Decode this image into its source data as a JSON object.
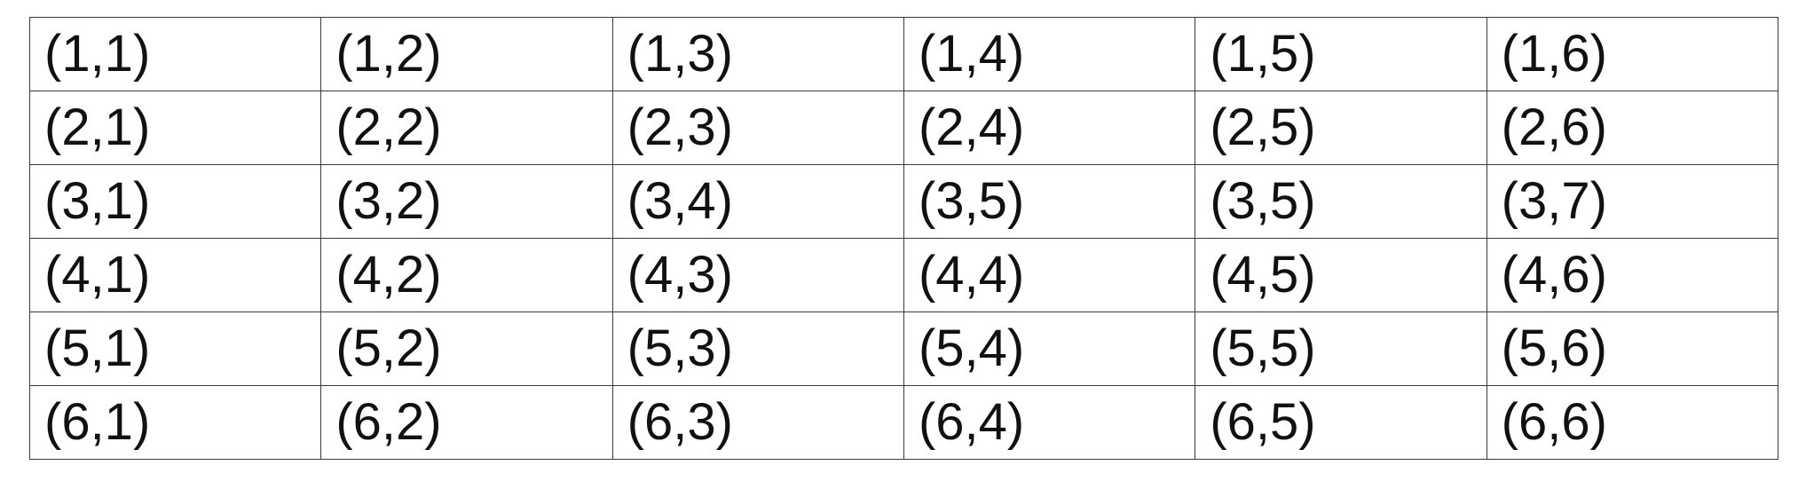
{
  "table": {
    "rows": [
      [
        "(1,1)",
        "(1,2)",
        "(1,3)",
        "(1,4)",
        "(1,5)",
        "(1,6)"
      ],
      [
        "(2,1)",
        "(2,2)",
        "(2,3)",
        "(2,4)",
        "(2,5)",
        "(2,6)"
      ],
      [
        "(3,1)",
        "(3,2)",
        "(3,4)",
        "(3,5)",
        "(3,5)",
        "(3,7)"
      ],
      [
        "(4,1)",
        "(4,2)",
        "(4,3)",
        "(4,4)",
        "(4,5)",
        "(4,6)"
      ],
      [
        "(5,1)",
        "(5,2)",
        "(5,3)",
        "(5,4)",
        "(5,5)",
        "(5,6)"
      ],
      [
        "(6,1)",
        "(6,2)",
        "(6,3)",
        "(6,4)",
        "(6,5)",
        "(6,6)"
      ]
    ]
  }
}
